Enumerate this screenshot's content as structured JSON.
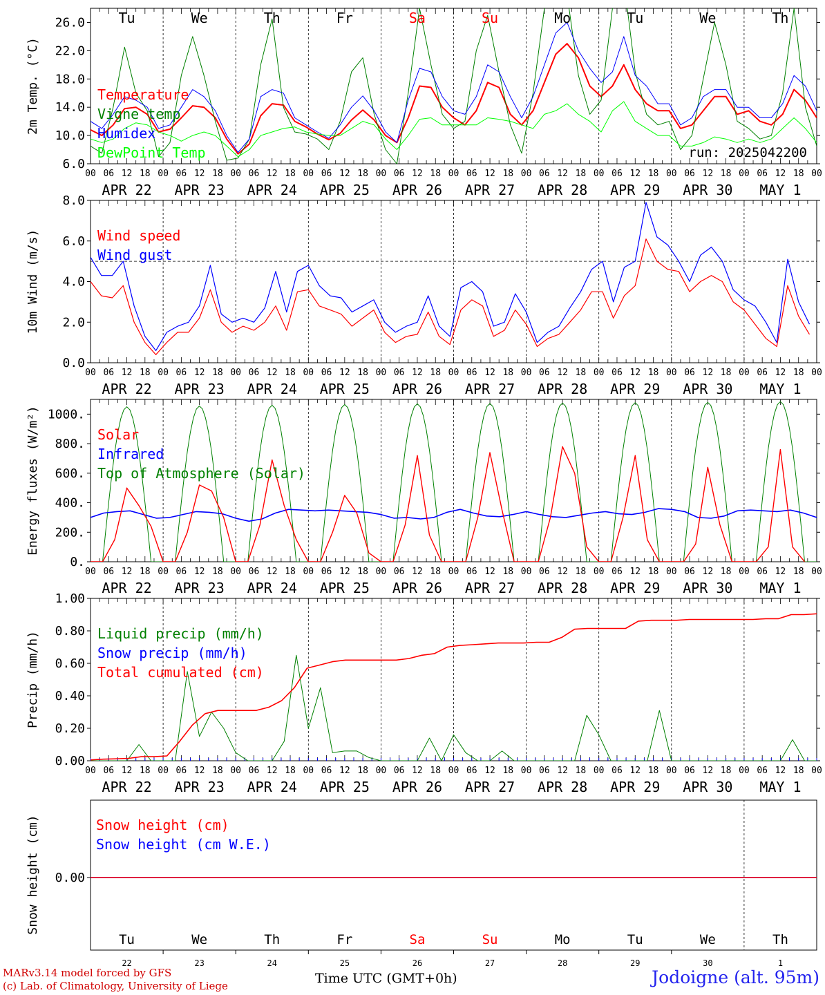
{
  "days": {
    "weekday_labels": [
      "Tu",
      "We",
      "Th",
      "Fr",
      "Sa",
      "Su",
      "Mo",
      "Tu",
      "We",
      "Th"
    ],
    "weekend_flags": [
      false,
      false,
      false,
      false,
      true,
      true,
      false,
      false,
      false,
      false
    ],
    "date_labels": [
      "APR 22",
      "APR 23",
      "APR 24",
      "APR 25",
      "APR 26",
      "APR 27",
      "APR 28",
      "APR 29",
      "APR 30",
      "MAY  1"
    ],
    "day_numbers": [
      "22",
      "23",
      "24",
      "25",
      "26",
      "27",
      "28",
      "29",
      "30",
      "1"
    ],
    "hour_labels": [
      "00",
      "06",
      "12",
      "18"
    ],
    "final_hour_label": "00"
  },
  "colors": {
    "red": "#ff0000",
    "green": "#008000",
    "blue": "#0000ff",
    "lightgreen": "#00ff00",
    "weekend": "#ff0000"
  },
  "footer": {
    "credit_line1": "MARv3.14 model forced by GFS",
    "credit_line2": "(c) Lab. of Climatology, University of Liege",
    "xlabel": "Time UTC (GMT+0h)",
    "station": "Jodoigne (alt. 95m)"
  },
  "chart_data": [
    {
      "type": "line",
      "title": "",
      "ylabel": "2m Temp. (°C)",
      "ylim": [
        6.0,
        28.0
      ],
      "yticks": [
        "6.0",
        "10.0",
        "14.0",
        "18.0",
        "22.0",
        "26.0"
      ],
      "x_unit": "hours since 2025-04-22 00 UTC (3-hourly)",
      "run_label": "run: 2025042200",
      "legend": [
        "Temperature",
        "Vigne temp",
        "Humidex",
        "DewPoint Temp"
      ],
      "series": [
        {
          "name": "Temperature",
          "color": "red",
          "values": [
            10.8,
            10.0,
            11.5,
            13.8,
            14.0,
            13.0,
            10.5,
            10.9,
            12.5,
            14.2,
            14.0,
            12.5,
            9.5,
            7.4,
            8.8,
            12.8,
            14.5,
            14.3,
            12.0,
            11.2,
            10.2,
            9.4,
            10.3,
            12.2,
            13.6,
            12.2,
            10.0,
            9.0,
            12.5,
            17.0,
            16.8,
            14.0,
            12.5,
            11.5,
            13.5,
            17.5,
            16.8,
            13.0,
            11.5,
            13.5,
            17.5,
            21.5,
            23.0,
            21.0,
            17.0,
            15.5,
            17.0,
            20.0,
            16.5,
            14.5,
            13.5,
            13.5,
            11.0,
            11.5,
            13.5,
            15.5,
            15.5,
            13.0,
            13.5,
            12.0,
            11.5,
            13.0,
            16.5,
            15.0,
            12.5
          ]
        },
        {
          "name": "Vigne temp",
          "color": "green",
          "values": [
            8.5,
            7.5,
            14.0,
            22.5,
            16.0,
            13.5,
            7.0,
            9.0,
            18.5,
            24.0,
            18.5,
            12.0,
            6.5,
            6.8,
            9.5,
            20.0,
            26.5,
            14.0,
            10.5,
            10.2,
            9.5,
            8.0,
            12.0,
            19.0,
            21.0,
            13.0,
            8.0,
            6.0,
            16.0,
            28.0,
            20.0,
            13.0,
            11.0,
            12.0,
            22.0,
            27.0,
            19.0,
            11.5,
            7.5,
            16.0,
            28.0,
            32.0,
            30.0,
            18.5,
            13.0,
            15.0,
            28.0,
            32.0,
            19.0,
            13.0,
            11.5,
            12.0,
            8.0,
            10.0,
            18.0,
            26.0,
            20.0,
            12.0,
            11.0,
            9.5,
            10.0,
            16.0,
            28.0,
            14.0,
            8.5
          ]
        },
        {
          "name": "Humidex",
          "color": "blue",
          "values": [
            12.0,
            11.0,
            13.0,
            15.5,
            15.0,
            14.0,
            11.0,
            11.5,
            14.0,
            16.5,
            15.5,
            13.5,
            10.0,
            7.6,
            9.5,
            15.5,
            16.5,
            16.0,
            12.5,
            11.5,
            10.5,
            9.6,
            11.5,
            14.0,
            15.6,
            13.5,
            10.5,
            9.0,
            15.0,
            19.5,
            19.0,
            15.5,
            13.5,
            13.0,
            15.5,
            20.0,
            19.0,
            15.5,
            12.5,
            15.5,
            20.0,
            24.5,
            26.0,
            22.0,
            19.5,
            17.5,
            19.0,
            24.0,
            18.5,
            17.0,
            14.5,
            14.5,
            11.5,
            12.5,
            15.5,
            16.5,
            16.5,
            14.0,
            14.0,
            12.5,
            12.5,
            14.5,
            18.5,
            17.0,
            13.5
          ]
        },
        {
          "name": "DewPoint Temp",
          "color": "lightgreen",
          "values": [
            9.5,
            9.0,
            9.5,
            11.0,
            11.8,
            11.5,
            10.5,
            10.0,
            9.2,
            10.0,
            10.5,
            10.0,
            8.5,
            7.0,
            8.0,
            10.0,
            10.5,
            11.0,
            11.2,
            10.5,
            10.2,
            10.0,
            10.0,
            11.0,
            12.0,
            11.5,
            9.5,
            8.0,
            10.0,
            12.3,
            12.5,
            11.5,
            11.5,
            11.5,
            11.5,
            12.5,
            12.3,
            12.0,
            11.5,
            11.0,
            13.0,
            13.5,
            14.5,
            13.0,
            12.0,
            10.5,
            13.5,
            14.8,
            12.0,
            11.0,
            10.0,
            10.0,
            8.5,
            8.5,
            9.0,
            9.8,
            9.5,
            9.0,
            9.5,
            9.0,
            9.5,
            11.0,
            12.5,
            11.0,
            9.0
          ]
        }
      ]
    },
    {
      "type": "line",
      "title": "",
      "ylabel": "10m Wind (m/s)",
      "ylim": [
        0.0,
        8.0
      ],
      "yticks": [
        "0.0",
        "2.0",
        "4.0",
        "6.0",
        "8.0"
      ],
      "reference_line": 5.0,
      "legend": [
        "Wind speed",
        "Wind gust"
      ],
      "series": [
        {
          "name": "Wind speed",
          "color": "red",
          "values": [
            4.0,
            3.3,
            3.2,
            3.8,
            2.0,
            1.0,
            0.4,
            1.0,
            1.5,
            1.5,
            2.2,
            3.6,
            2.0,
            1.5,
            1.8,
            1.6,
            2.0,
            2.8,
            1.6,
            3.5,
            3.6,
            2.8,
            2.6,
            2.4,
            1.8,
            2.2,
            2.6,
            1.5,
            1.0,
            1.3,
            1.4,
            2.5,
            1.3,
            0.9,
            2.6,
            3.1,
            2.8,
            1.3,
            1.6,
            2.6,
            1.9,
            0.8,
            1.2,
            1.4,
            2.0,
            2.6,
            3.5,
            3.5,
            2.2,
            3.3,
            3.8,
            6.1,
            5.0,
            4.6,
            4.5,
            3.5,
            4.0,
            4.3,
            4.0,
            3.0,
            2.6,
            1.9,
            1.2,
            0.8,
            3.8,
            2.3,
            1.4
          ]
        },
        {
          "name": "Wind gust",
          "color": "blue",
          "values": [
            5.2,
            4.3,
            4.3,
            5.0,
            2.8,
            1.3,
            0.6,
            1.5,
            1.8,
            2.0,
            2.8,
            4.8,
            2.4,
            2.0,
            2.2,
            2.0,
            2.7,
            4.5,
            2.5,
            4.5,
            4.8,
            3.8,
            3.3,
            3.2,
            2.5,
            2.8,
            3.1,
            2.0,
            1.5,
            1.8,
            2.0,
            3.3,
            1.8,
            1.3,
            3.7,
            4.0,
            3.5,
            1.8,
            2.0,
            3.4,
            2.5,
            1.0,
            1.5,
            1.8,
            2.7,
            3.5,
            4.6,
            5.0,
            3.0,
            4.7,
            5.0,
            7.9,
            6.2,
            5.8,
            5.0,
            4.0,
            5.3,
            5.7,
            5.0,
            3.6,
            3.1,
            2.8,
            2.0,
            1.0,
            5.1,
            3.0,
            1.9
          ]
        }
      ]
    },
    {
      "type": "line",
      "title": "",
      "ylabel": "Energy fluxes (W/m²)",
      "ylim": [
        0,
        1100
      ],
      "yticks": [
        "0.",
        "200.",
        "400.",
        "600.",
        "800.",
        "1000."
      ],
      "legend": [
        "Solar",
        "Infrared",
        "Top of Atmosphere (Solar)"
      ],
      "toa_peaks": [
        1050,
        1055,
        1060,
        1065,
        1070,
        1072,
        1075,
        1078,
        1080,
        1085
      ],
      "series": [
        {
          "name": "Solar",
          "color": "red",
          "values": [
            0,
            0,
            150,
            500,
            380,
            240,
            0,
            0,
            200,
            520,
            480,
            300,
            0,
            0,
            250,
            690,
            380,
            150,
            0,
            0,
            200,
            450,
            330,
            60,
            0,
            0,
            250,
            720,
            180,
            0,
            0,
            0,
            300,
            740,
            350,
            0,
            0,
            0,
            300,
            780,
            600,
            100,
            0,
            0,
            300,
            720,
            150,
            0,
            0,
            0,
            120,
            640,
            250,
            0,
            0,
            0,
            100,
            760,
            100,
            0
          ]
        },
        {
          "name": "Infrared",
          "color": "blue",
          "values": [
            300,
            330,
            340,
            345,
            320,
            295,
            300,
            320,
            340,
            335,
            325,
            295,
            275,
            290,
            330,
            355,
            350,
            345,
            350,
            345,
            340,
            335,
            320,
            295,
            300,
            290,
            300,
            335,
            355,
            330,
            310,
            305,
            320,
            340,
            320,
            305,
            300,
            315,
            330,
            340,
            325,
            320,
            335,
            360,
            355,
            340,
            300,
            295,
            310,
            345,
            350,
            345,
            340,
            350,
            330,
            300
          ]
        },
        {
          "name": "Top of Atmosphere (Solar)",
          "color": "green",
          "values": []
        }
      ]
    },
    {
      "type": "line",
      "title": "",
      "ylabel": "Precip (mm/h)",
      "ylim": [
        0.0,
        1.0
      ],
      "yticks": [
        "0.00",
        "0.20",
        "0.40",
        "0.60",
        "0.80",
        "1.00"
      ],
      "legend": [
        "Liquid precip (mm/h)",
        "Snow precip (mm/h)",
        "Total cumulated (cm)"
      ],
      "series": [
        {
          "name": "Liquid precip (mm/h)",
          "color": "green",
          "values": [
            0.0,
            0.0,
            0.0,
            0.0,
            0.1,
            0.0,
            0.0,
            0.0,
            0.55,
            0.15,
            0.3,
            0.2,
            0.05,
            0.0,
            0.0,
            0.0,
            0.12,
            0.65,
            0.2,
            0.45,
            0.05,
            0.06,
            0.06,
            0.02,
            0.0,
            0.0,
            0.0,
            0.0,
            0.14,
            0.0,
            0.16,
            0.05,
            0.0,
            0.0,
            0.06,
            0.0,
            0.0,
            0.0,
            0.0,
            0.0,
            0.0,
            0.28,
            0.16,
            0.0,
            0.0,
            0.0,
            0.0,
            0.31,
            0.0,
            0.0,
            0.0,
            0.0,
            0.0,
            0.0,
            0.0,
            0.0,
            0.0,
            0.0,
            0.13,
            0.0,
            0.0
          ]
        },
        {
          "name": "Snow precip (mm/h)",
          "color": "blue",
          "values": []
        },
        {
          "name": "Total cumulated (cm)",
          "color": "red",
          "values": [
            0.005,
            0.01,
            0.012,
            0.015,
            0.025,
            0.025,
            0.03,
            0.12,
            0.22,
            0.29,
            0.31,
            0.31,
            0.31,
            0.31,
            0.33,
            0.37,
            0.45,
            0.57,
            0.59,
            0.61,
            0.62,
            0.62,
            0.62,
            0.62,
            0.62,
            0.63,
            0.65,
            0.66,
            0.7,
            0.71,
            0.715,
            0.72,
            0.725,
            0.725,
            0.725,
            0.73,
            0.73,
            0.76,
            0.81,
            0.815,
            0.815,
            0.815,
            0.815,
            0.86,
            0.865,
            0.865,
            0.865,
            0.87,
            0.87,
            0.87,
            0.87,
            0.87,
            0.87,
            0.875,
            0.875,
            0.9,
            0.9,
            0.905
          ]
        }
      ]
    },
    {
      "type": "line",
      "title": "",
      "ylabel": "Snow height (cm)",
      "ytick": "0.00",
      "legend": [
        "Snow height (cm)",
        "Snow height (cm W.E.)"
      ],
      "series": [
        {
          "name": "Snow height (cm)",
          "color": "red",
          "values": [
            0.0,
            0.0
          ]
        },
        {
          "name": "Snow height (cm W.E.)",
          "color": "blue",
          "values": [
            0.0,
            0.0
          ]
        }
      ]
    }
  ]
}
